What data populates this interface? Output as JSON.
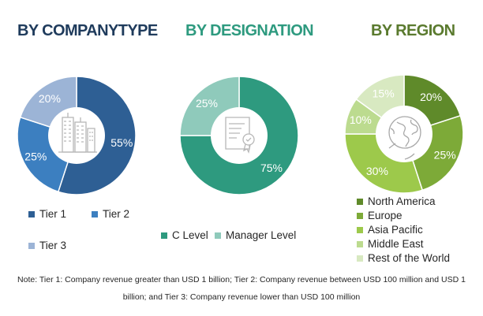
{
  "chart_data": [
    {
      "type": "pie",
      "title": "BY COMPANYTYPE",
      "categories": [
        "Tier 1",
        "Tier 2",
        "Tier 3"
      ],
      "values": [
        55,
        25,
        20
      ],
      "labels": [
        "55%",
        "25%",
        "20%"
      ],
      "colors": [
        "#2e5f94",
        "#3c7fc0",
        "#9cb4d6"
      ],
      "legend_position": "bottom"
    },
    {
      "type": "pie",
      "title": "BY DESIGNATION",
      "categories": [
        "C Level",
        "Manager Level"
      ],
      "values": [
        75,
        25
      ],
      "labels": [
        "75%",
        "25%"
      ],
      "colors": [
        "#2e9a7f",
        "#8fcabb"
      ],
      "legend_position": "bottom"
    },
    {
      "type": "pie",
      "title": "BY REGION",
      "categories": [
        "North America",
        "Europe",
        "Asia Pacific",
        "Middle East",
        "Rest of the World"
      ],
      "values": [
        20,
        25,
        30,
        10,
        15
      ],
      "labels": [
        "20%",
        "25%",
        "30%",
        "10%",
        "15%"
      ],
      "colors": [
        "#5f8a2a",
        "#7daa38",
        "#9dc94b",
        "#bcdb8f",
        "#d8e9c1"
      ],
      "legend_position": "bottom"
    }
  ],
  "note": "Note: Tier 1: Company revenue greater than USD 1 billion; Tier 2: Company revenue between USD 100 million and USD 1 billion; and Tier 3: Company revenue lower than USD 100 million",
  "icons": [
    "buildings-icon",
    "certificate-icon",
    "globe-icon"
  ]
}
